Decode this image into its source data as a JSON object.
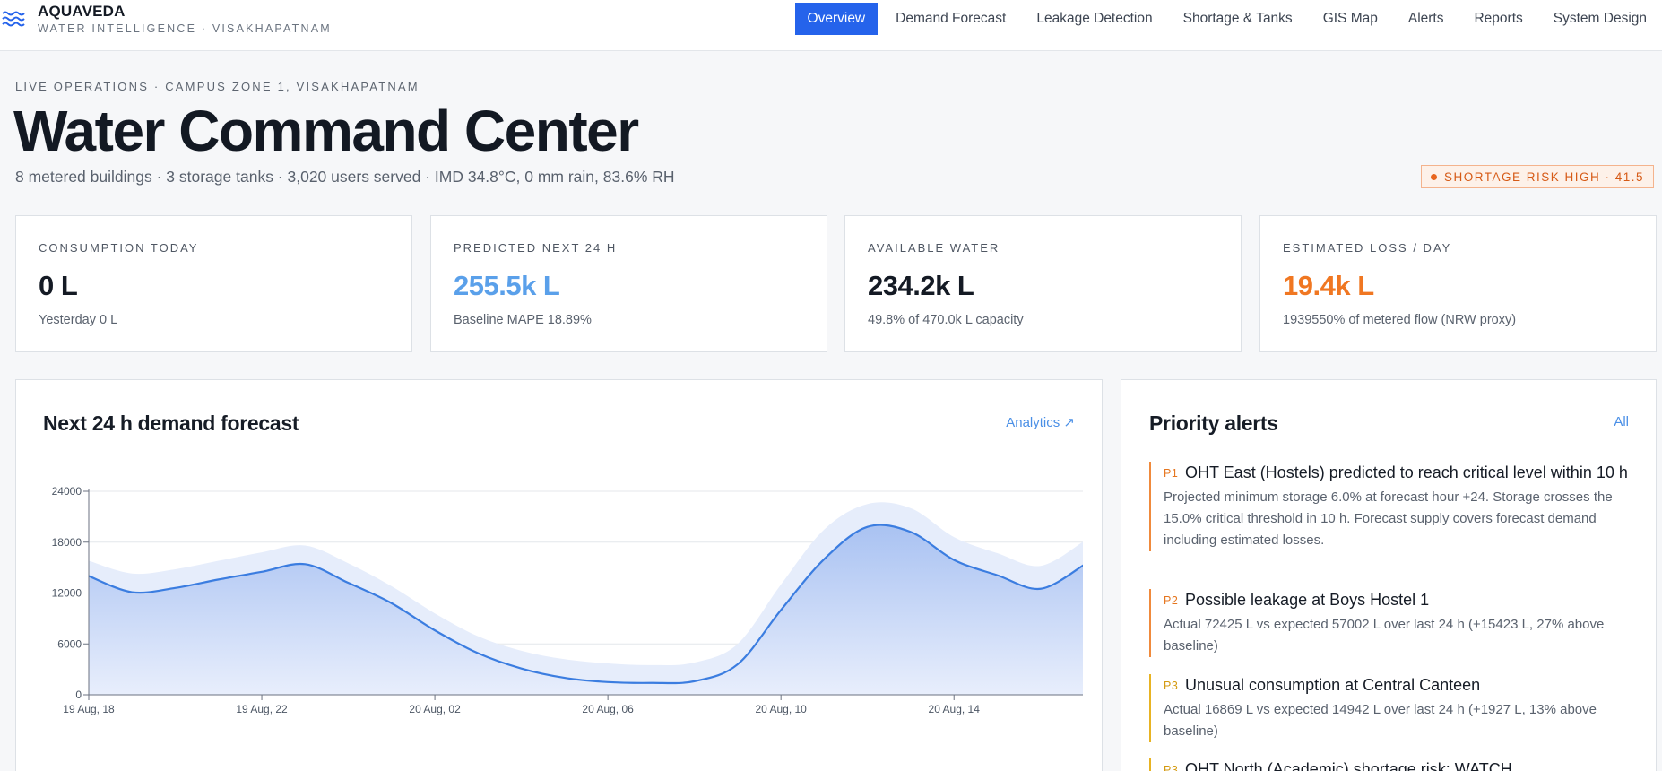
{
  "brand": {
    "title": "AQUAVEDA",
    "subtitle": "WATER INTELLIGENCE · VISAKHAPATNAM",
    "icon": "waves-icon"
  },
  "nav": {
    "items": [
      {
        "label": "Overview",
        "active": true
      },
      {
        "label": "Demand Forecast",
        "active": false
      },
      {
        "label": "Leakage Detection",
        "active": false
      },
      {
        "label": "Shortage & Tanks",
        "active": false
      },
      {
        "label": "GIS Map",
        "active": false
      },
      {
        "label": "Alerts",
        "active": false
      },
      {
        "label": "Reports",
        "active": false
      },
      {
        "label": "System Design",
        "active": false
      }
    ]
  },
  "header": {
    "eyebrow": "LIVE OPERATIONS · CAMPUS ZONE 1, VISAKHAPATNAM",
    "title": "Water Command Center",
    "subtitle": "8 metered buildings · 3 storage tanks · 3,020 users served · IMD 34.8°C, 0 mm rain, 83.6% RH",
    "risk_badge": "SHORTAGE RISK HIGH · 41.5"
  },
  "kpis": [
    {
      "label": "CONSUMPTION TODAY",
      "value": "0 L",
      "note": "Yesterday 0 L",
      "color": "#141a24"
    },
    {
      "label": "PREDICTED NEXT 24 H",
      "value": "255.5k L",
      "note": "Baseline MAPE 18.89%",
      "color": "#5aa0ea"
    },
    {
      "label": "AVAILABLE WATER",
      "value": "234.2k L",
      "note": "49.8% of 470.0k L capacity",
      "color": "#141a24"
    },
    {
      "label": "ESTIMATED LOSS / DAY",
      "value": "19.4k L",
      "note": "1939550% of metered flow (NRW proxy)",
      "color": "#f07722"
    }
  ],
  "forecast_panel": {
    "title": "Next 24 h demand forecast",
    "link": "Analytics ↗"
  },
  "alerts_panel": {
    "title": "Priority alerts",
    "link": "All",
    "items": [
      {
        "priority": "P1",
        "color": "#f08a3c",
        "title": "OHT East (Hostels) predicted to reach critical level within 10 h",
        "desc": "Projected minimum storage 6.0% at forecast hour +24. Storage crosses the 15.0% critical threshold in 10 h. Forecast supply covers forecast demand including estimated losses."
      },
      {
        "priority": "P2",
        "color": "#f08a3c",
        "title": "Possible leakage at Boys Hostel 1",
        "desc": "Actual 72425 L vs expected 57002 L over last 24 h (+15423 L, 27% above baseline)"
      },
      {
        "priority": "P3",
        "color": "#e8b323",
        "title": "Unusual consumption at Central Canteen",
        "desc": "Actual 16869 L vs expected 14942 L over last 24 h (+1927 L, 13% above baseline)"
      },
      {
        "priority": "P3",
        "color": "#e8b323",
        "title": "OHT North (Academic) shortage risk: WATCH",
        "desc": ""
      }
    ]
  },
  "chart_data": {
    "type": "area",
    "title": "Next 24 h demand forecast",
    "xlabel": "",
    "ylabel": "",
    "ylim": [
      0,
      24000
    ],
    "yticks": [
      0,
      6000,
      12000,
      18000,
      24000
    ],
    "xtick_labels": [
      "19 Aug, 18",
      "19 Aug, 22",
      "20 Aug, 02",
      "20 Aug, 06",
      "20 Aug, 10",
      "20 Aug, 14"
    ],
    "x_hours": [
      0,
      1,
      2,
      3,
      4,
      5,
      6,
      7,
      8,
      9,
      10,
      11,
      12,
      13,
      14,
      15,
      16,
      17,
      18,
      19,
      20,
      21,
      22,
      23
    ],
    "series": [
      {
        "role": "forecast",
        "values": [
          14000,
          12100,
          12600,
          13600,
          14500,
          15400,
          13200,
          10800,
          7600,
          4900,
          3100,
          2000,
          1500,
          1400,
          1600,
          3600,
          10000,
          16000,
          19800,
          19200,
          15900,
          14100,
          12500,
          15300
        ],
        "color": "#3b7de0"
      },
      {
        "role": "upper_band",
        "values": [
          15800,
          14300,
          14800,
          15800,
          16800,
          17600,
          15500,
          12800,
          9600,
          6900,
          5200,
          4200,
          3700,
          3500,
          3800,
          6000,
          13000,
          19500,
          22500,
          22000,
          18600,
          16700,
          15200,
          18100
        ],
        "color": "#e6edfb"
      }
    ],
    "grid": true
  }
}
